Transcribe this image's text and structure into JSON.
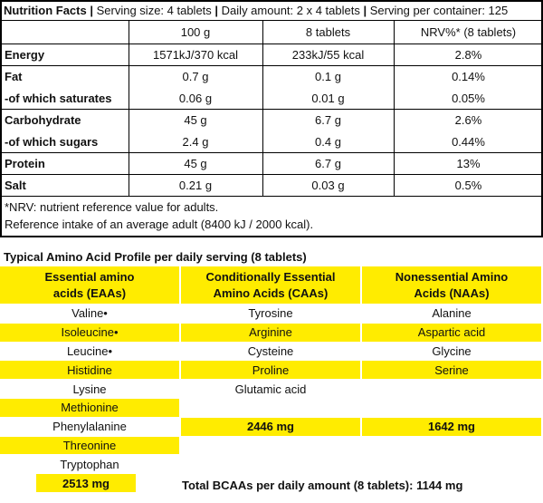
{
  "nutrition": {
    "title": "Nutrition Facts",
    "serving_items": [
      "Serving size: 4 tablets",
      "Daily amount: 2 x 4 tablets",
      "Serving per container: 125"
    ],
    "columns": [
      "100 g",
      "8 tablets",
      "NRV%* (8 tablets)"
    ],
    "row_groups": [
      [
        [
          "Energy",
          "1571kJ/370 kcal",
          "233kJ/55 kcal",
          "2.8%"
        ]
      ],
      [
        [
          "Fat",
          "0.7 g",
          "0.1 g",
          "0.14%"
        ],
        [
          "-of which saturates",
          "0.06 g",
          "0.01 g",
          "0.05%"
        ]
      ],
      [
        [
          "Carbohydrate",
          "45 g",
          "6.7 g",
          "2.6%"
        ],
        [
          "-of which sugars",
          "2.4 g",
          "0.4 g",
          "0.44%"
        ]
      ],
      [
        [
          "Protein",
          "45 g",
          "6.7 g",
          "13%"
        ]
      ],
      [
        [
          "Salt",
          "0.21 g",
          "0.03 g",
          "0.5%"
        ]
      ]
    ],
    "footnotes": [
      "*NRV: nutrient reference value for adults.",
      "Reference intake of an average adult (8400 kJ / 2000 kcal)."
    ]
  },
  "amino": {
    "title": "Typical Amino Acid Profile per daily serving (8 tablets)",
    "groups": [
      {
        "header": [
          "Essential amino",
          "acids (EAAs)"
        ],
        "items": [
          "Valine•",
          "Isoleucine•",
          "Leucine•",
          "Histidine",
          "Lysine",
          "Methionine",
          "Phenylalanine",
          "Threonine",
          "Tryptophan"
        ],
        "total": "2513 mg"
      },
      {
        "header": [
          "Conditionally Essential",
          "Amino Acids (CAAs)"
        ],
        "items": [
          "Tyrosine",
          "Arginine",
          "Cysteine",
          "Proline",
          "Glutamic acid"
        ],
        "total": "2446 mg"
      },
      {
        "header": [
          "Nonessential Amino",
          "Acids (NAAs)"
        ],
        "items": [
          "Alanine",
          "Aspartic acid",
          "Glycine",
          "Serine"
        ],
        "total": "1642 mg"
      }
    ],
    "bcaa_total": "Total BCAAs per daily amount (8 tablets): 1144 mg"
  }
}
